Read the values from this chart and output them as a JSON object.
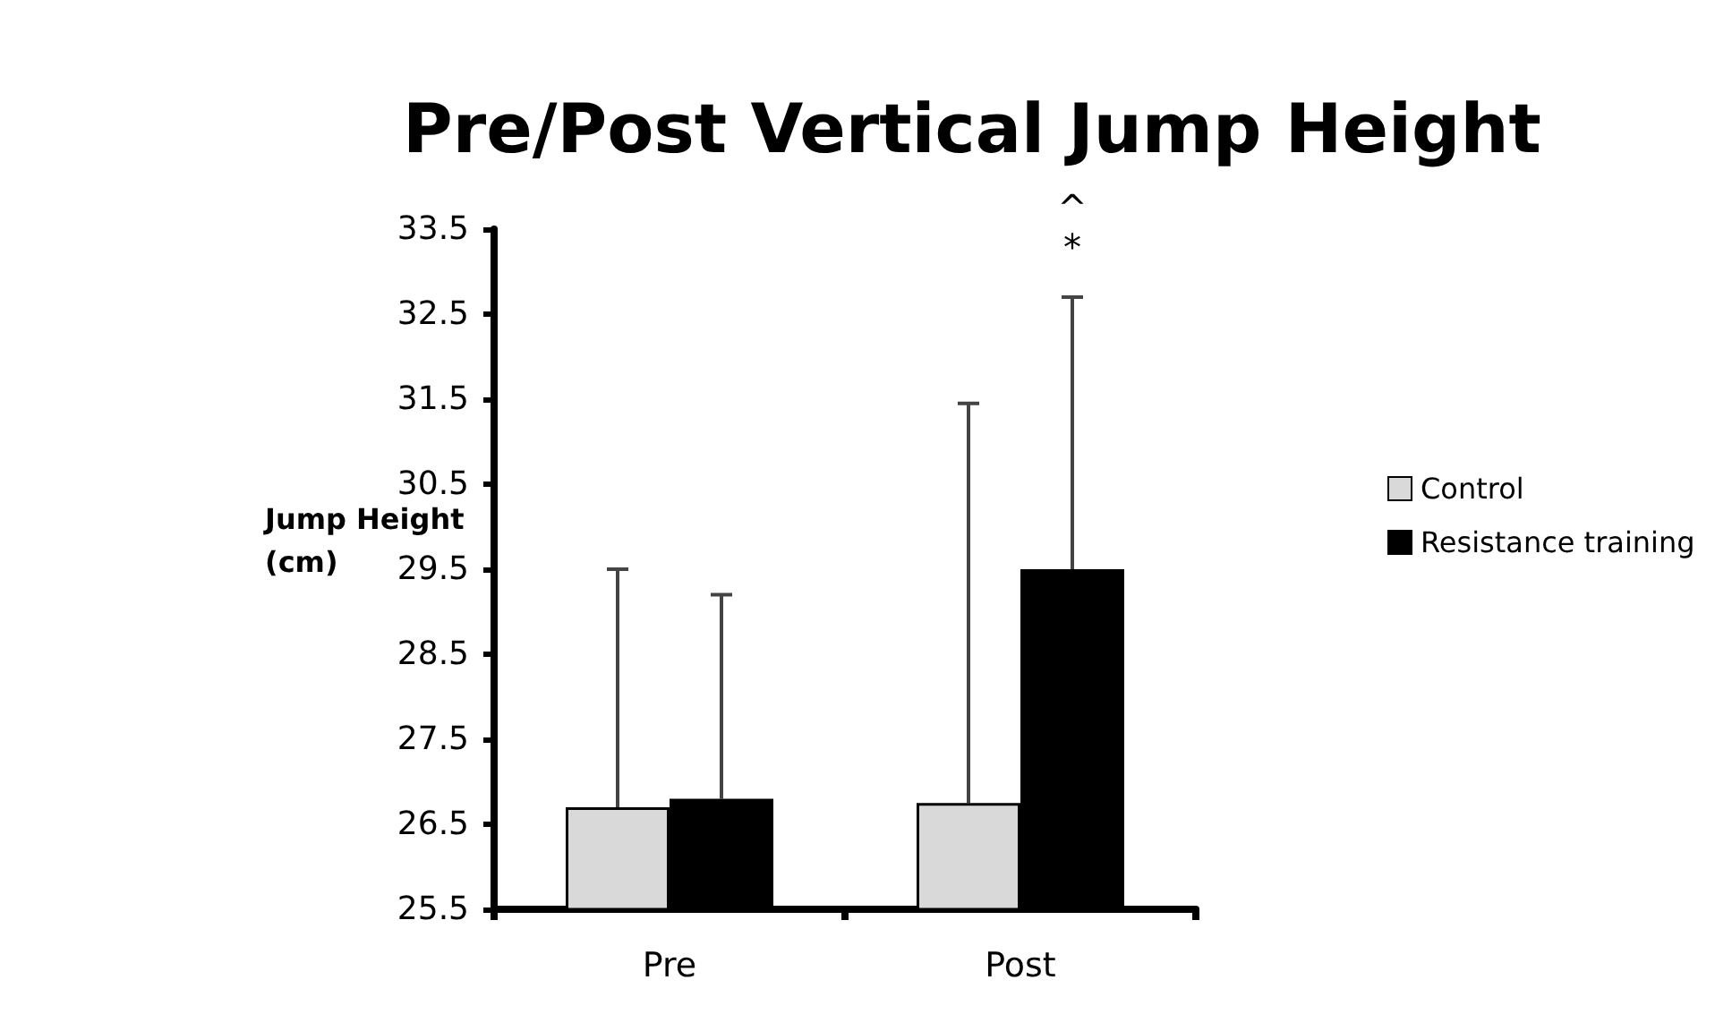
{
  "chart_data": {
    "type": "bar",
    "title": "Pre/Post Vertical Jump Height",
    "ylabel": "Jump Height\n(cm)",
    "categories": [
      "Pre",
      "Post"
    ],
    "series": [
      {
        "name": "Control",
        "color": "#d9d9d9",
        "values": [
          26.7,
          26.75
        ],
        "errors": [
          [
            26.7,
            29.5
          ],
          [
            26.75,
            31.45
          ]
        ]
      },
      {
        "name": "Resistance training",
        "color": "#000000",
        "values": [
          26.8,
          29.5
        ],
        "errors": [
          [
            26.8,
            29.2
          ],
          [
            29.5,
            32.7
          ]
        ]
      }
    ],
    "ylim": [
      25.5,
      33.5
    ],
    "yticks": [
      25.5,
      26.5,
      27.5,
      28.5,
      29.5,
      30.5,
      31.5,
      32.5,
      33.5
    ],
    "grid": false,
    "legend": "right",
    "annotations": [
      "^",
      "*"
    ]
  }
}
